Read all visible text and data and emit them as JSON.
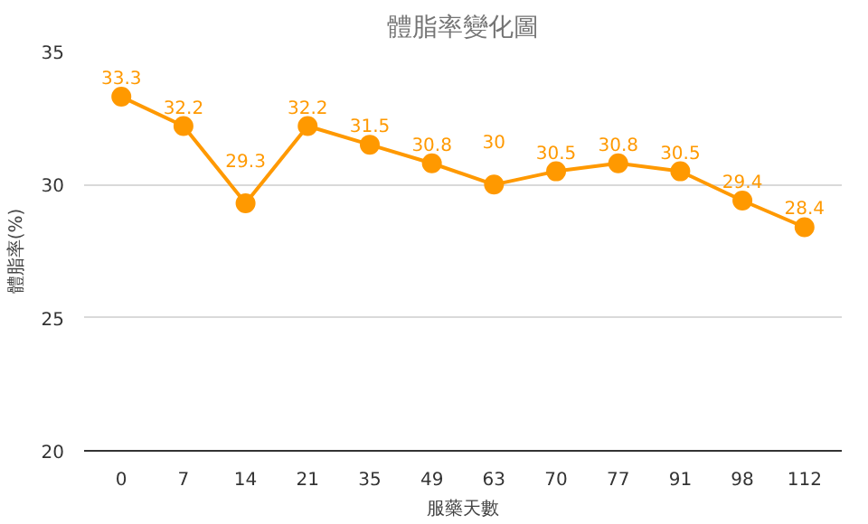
{
  "chart_data": {
    "type": "line",
    "title": "體脂率變化圖",
    "xlabel": "服藥天數",
    "ylabel": "體脂率(%)",
    "categories": [
      "0",
      "7",
      "14",
      "21",
      "35",
      "49",
      "63",
      "70",
      "77",
      "91",
      "98",
      "112"
    ],
    "series": [
      {
        "color": "#ff9900",
        "values": [
          33.3,
          32.2,
          29.3,
          32.2,
          31.5,
          30.8,
          30,
          30.5,
          30.8,
          30.5,
          29.4,
          28.4
        ]
      }
    ],
    "ylim": [
      20,
      35
    ],
    "yticks": [
      20,
      25,
      30,
      35
    ],
    "grid": "y",
    "marker": "circle",
    "line_style": "solid",
    "data_labels": true
  }
}
